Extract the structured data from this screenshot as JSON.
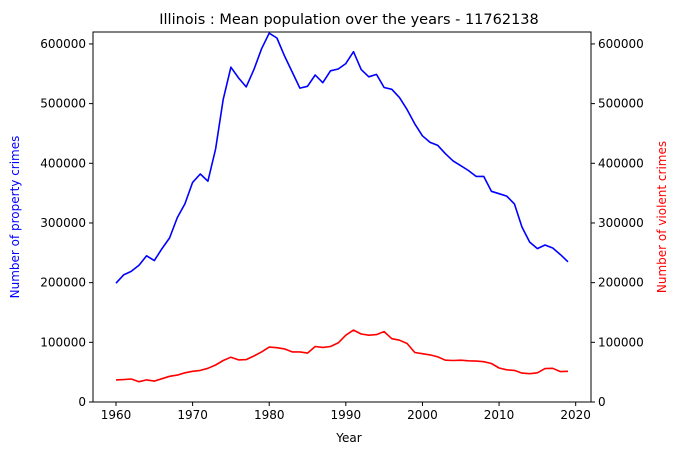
{
  "chart_data": {
    "type": "line",
    "title": "Illinois : Mean population over the years - 11762138",
    "xlabel": "Year",
    "ylabel_left": "Number of property crimes",
    "ylabel_right": "Number of violent crimes",
    "xlim": [
      1957,
      2022
    ],
    "ylim": [
      0,
      620000
    ],
    "x_ticks": [
      1960,
      1970,
      1980,
      1990,
      2000,
      2010,
      2020
    ],
    "y_ticks": [
      0,
      100000,
      200000,
      300000,
      400000,
      500000,
      600000
    ],
    "grid": false,
    "legend": "none",
    "x": [
      1960,
      1961,
      1962,
      1963,
      1964,
      1965,
      1966,
      1967,
      1968,
      1969,
      1970,
      1971,
      1972,
      1973,
      1974,
      1975,
      1976,
      1977,
      1978,
      1979,
      1980,
      1981,
      1982,
      1983,
      1984,
      1985,
      1986,
      1987,
      1988,
      1989,
      1990,
      1991,
      1992,
      1993,
      1994,
      1995,
      1996,
      1997,
      1998,
      1999,
      2000,
      2001,
      2002,
      2003,
      2004,
      2005,
      2006,
      2007,
      2008,
      2009,
      2010,
      2011,
      2012,
      2013,
      2014,
      2015,
      2016,
      2017,
      2018,
      2019
    ],
    "series": [
      {
        "axis": "left",
        "color": "#0000ff",
        "values": [
          199000,
          213000,
          219000,
          229000,
          245000,
          237000,
          257000,
          275000,
          309000,
          332000,
          368000,
          382000,
          370000,
          424000,
          507000,
          561000,
          543000,
          528000,
          557000,
          592000,
          618000,
          610000,
          580000,
          553000,
          526000,
          529000,
          548000,
          535000,
          555000,
          558000,
          567000,
          587000,
          557000,
          545000,
          549000,
          527000,
          524000,
          510000,
          490000,
          466000,
          446000,
          435000,
          430000,
          416000,
          404000,
          396000,
          388000,
          378000,
          378000,
          353000,
          349000,
          345000,
          332000,
          293000,
          268000,
          257000,
          263000,
          258000,
          247000,
          235000
        ]
      },
      {
        "axis": "right",
        "color": "#ff0000",
        "values": [
          37000,
          37500,
          38500,
          34000,
          37000,
          35000,
          39000,
          43000,
          45000,
          49000,
          51500,
          53000,
          56500,
          62000,
          69500,
          75000,
          70500,
          71000,
          77000,
          84000,
          92000,
          91000,
          89000,
          84000,
          84000,
          82000,
          93000,
          91500,
          93000,
          99000,
          112000,
          120500,
          114000,
          112000,
          113000,
          118000,
          106000,
          103500,
          98000,
          83000,
          81000,
          79000,
          75500,
          70000,
          69500,
          70000,
          69000,
          68500,
          67500,
          64500,
          57000,
          54000,
          53000,
          48500,
          47500,
          49000,
          56000,
          56500,
          51000,
          51500
        ]
      }
    ]
  }
}
